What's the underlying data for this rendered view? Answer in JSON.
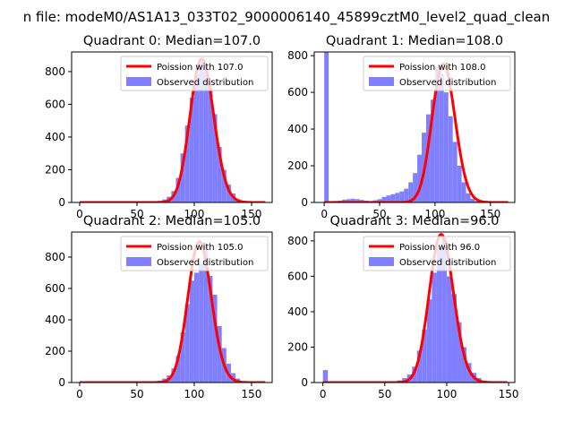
{
  "figure": {
    "suptitle": "n file: modeM0/AS1A13_033T02_9000006140_45899cztM0_level2_quad_clean"
  },
  "colors": {
    "hist": "#8080ff",
    "poisson": "#ff0000",
    "legend_frame": "#cccccc"
  },
  "chart_data": [
    {
      "type": "bar",
      "title": "Quadrant 0: Median=107.0",
      "xlim": [
        -7,
        168
      ],
      "ylim": [
        0,
        920
      ],
      "xticks": [
        0,
        50,
        100,
        150
      ],
      "yticks": [
        0,
        200,
        400,
        600,
        800
      ],
      "legend": {
        "placement": "top-right",
        "entries": [
          "Poission with 107.0",
          "Observed distribution"
        ]
      },
      "poisson_mean": 107,
      "bin_width": 4,
      "hist": {
        "bins": [
          60,
          64,
          68,
          72,
          76,
          80,
          84,
          88,
          92,
          96,
          100,
          104,
          108,
          112,
          116,
          120,
          124,
          128,
          132,
          136
        ],
        "counts": [
          3,
          5,
          10,
          18,
          35,
          70,
          150,
          300,
          470,
          640,
          780,
          860,
          830,
          710,
          540,
          340,
          200,
          110,
          55,
          20
        ]
      }
    },
    {
      "type": "bar",
      "title": "Quadrant 1: Median=108.0",
      "xlim": [
        -9,
        172
      ],
      "ylim": [
        0,
        820
      ],
      "xticks": [
        0,
        50,
        100,
        150
      ],
      "yticks": [
        0,
        200,
        400,
        600,
        800
      ],
      "legend": {
        "placement": "top-right",
        "entries": [
          "Poission with 108.0",
          "Observed distribution"
        ]
      },
      "poisson_mean": 108,
      "bin_width": 4,
      "hist": {
        "bins": [
          0,
          4,
          8,
          12,
          16,
          20,
          24,
          28,
          32,
          36,
          40,
          44,
          48,
          52,
          56,
          60,
          64,
          68,
          72,
          76,
          80,
          84,
          88,
          92,
          96,
          100,
          104,
          108,
          112,
          116,
          120,
          124,
          128,
          132,
          136,
          140
        ],
        "counts": [
          1000,
          5,
          8,
          10,
          15,
          18,
          20,
          18,
          14,
          10,
          8,
          12,
          18,
          30,
          38,
          45,
          52,
          60,
          75,
          110,
          160,
          260,
          380,
          480,
          560,
          740,
          700,
          600,
          470,
          330,
          200,
          110,
          50,
          20,
          8,
          3
        ]
      }
    },
    {
      "type": "bar",
      "title": "Quadrant 2: Median=105.0",
      "xlim": [
        -7,
        168
      ],
      "ylim": [
        0,
        960
      ],
      "xticks": [
        0,
        50,
        100,
        150
      ],
      "yticks": [
        0,
        200,
        400,
        600,
        800
      ],
      "legend": {
        "placement": "top-right",
        "entries": [
          "Poission with 105.0",
          "Observed distribution"
        ]
      },
      "poisson_mean": 105,
      "bin_width": 4,
      "hist": {
        "bins": [
          60,
          64,
          68,
          72,
          76,
          80,
          84,
          88,
          92,
          96,
          100,
          104,
          108,
          112,
          116,
          120,
          124,
          128,
          132,
          136,
          140
        ],
        "counts": [
          3,
          6,
          12,
          25,
          45,
          90,
          170,
          320,
          500,
          650,
          700,
          760,
          880,
          680,
          560,
          360,
          220,
          120,
          60,
          25,
          8
        ]
      }
    },
    {
      "type": "bar",
      "title": "Quadrant 3: Median=96.0",
      "xlim": [
        -7,
        155
      ],
      "ylim": [
        0,
        850
      ],
      "xticks": [
        0,
        50,
        100,
        150
      ],
      "yticks": [
        0,
        200,
        400,
        600,
        800
      ],
      "legend": {
        "placement": "top-right",
        "entries": [
          "Poission with 96.0",
          "Observed distribution"
        ]
      },
      "poisson_mean": 96,
      "bin_width": 4,
      "hist": {
        "bins": [
          0,
          52,
          56,
          60,
          64,
          68,
          72,
          76,
          80,
          84,
          88,
          92,
          96,
          100,
          104,
          108,
          112,
          116,
          120,
          124,
          128,
          132
        ],
        "counts": [
          70,
          3,
          6,
          12,
          25,
          45,
          90,
          180,
          300,
          470,
          620,
          760,
          820,
          600,
          500,
          340,
          200,
          110,
          55,
          25,
          10,
          3
        ]
      }
    }
  ]
}
